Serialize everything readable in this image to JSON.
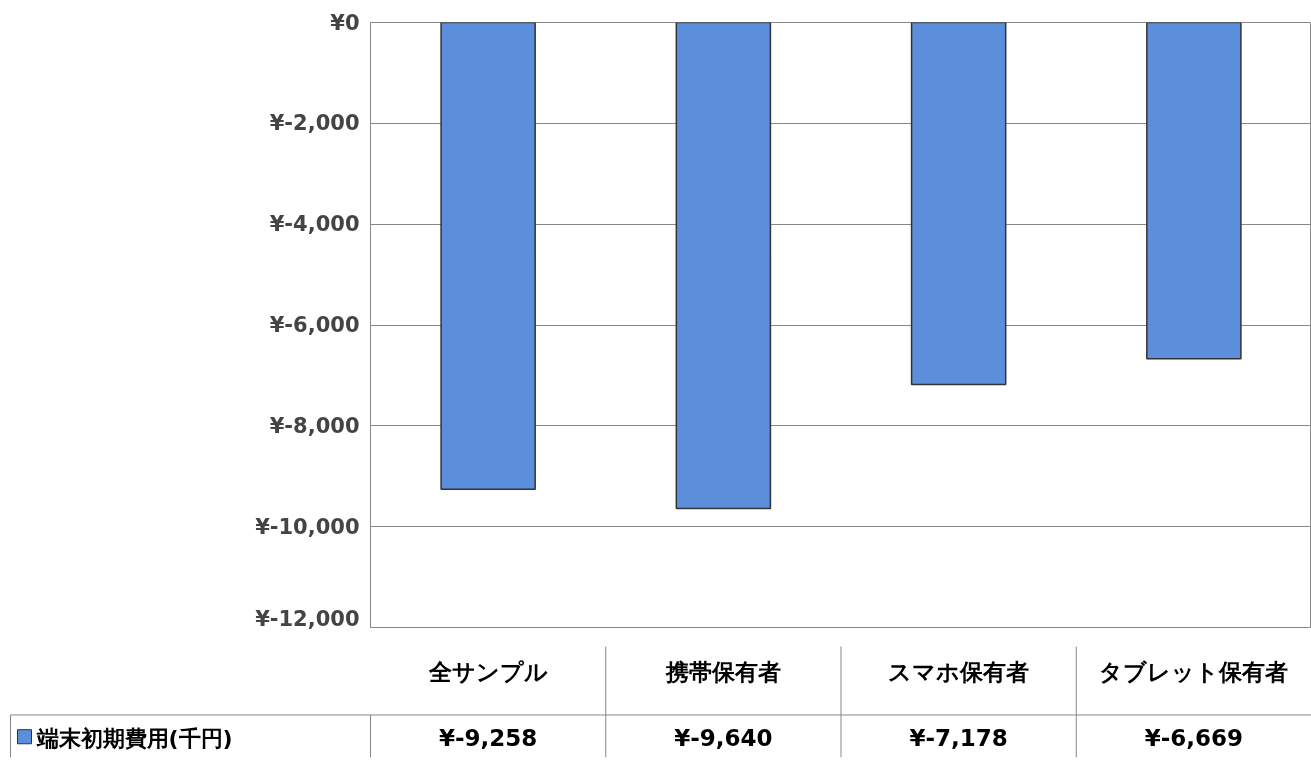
{
  "chart_data": {
    "type": "bar",
    "categories": [
      "全サンプル",
      "携帯保有者",
      "スマホ保有者",
      "タブレット保有者"
    ],
    "series": [
      {
        "name": "端末初期費用(千円)",
        "color": "#5b8fdc",
        "values": [
          -9258,
          -9640,
          -7178,
          -6669
        ],
        "value_labels": [
          "¥-9,258",
          "¥-9,640",
          "¥-7,178",
          "¥-6,669"
        ]
      }
    ],
    "ylim": [
      -12000,
      0
    ],
    "yticks": [
      {
        "value": -12000,
        "label": "¥-12,000"
      },
      {
        "value": -10000,
        "label": "¥-10,000"
      },
      {
        "value": -8000,
        "label": "¥-8,000"
      },
      {
        "value": -6000,
        "label": "¥-6,000"
      },
      {
        "value": -4000,
        "label": "¥-4,000"
      },
      {
        "value": -2000,
        "label": "¥-2,000"
      },
      {
        "value": 0,
        "label": "¥0"
      }
    ],
    "grid": "y",
    "legend": "bottom left"
  }
}
